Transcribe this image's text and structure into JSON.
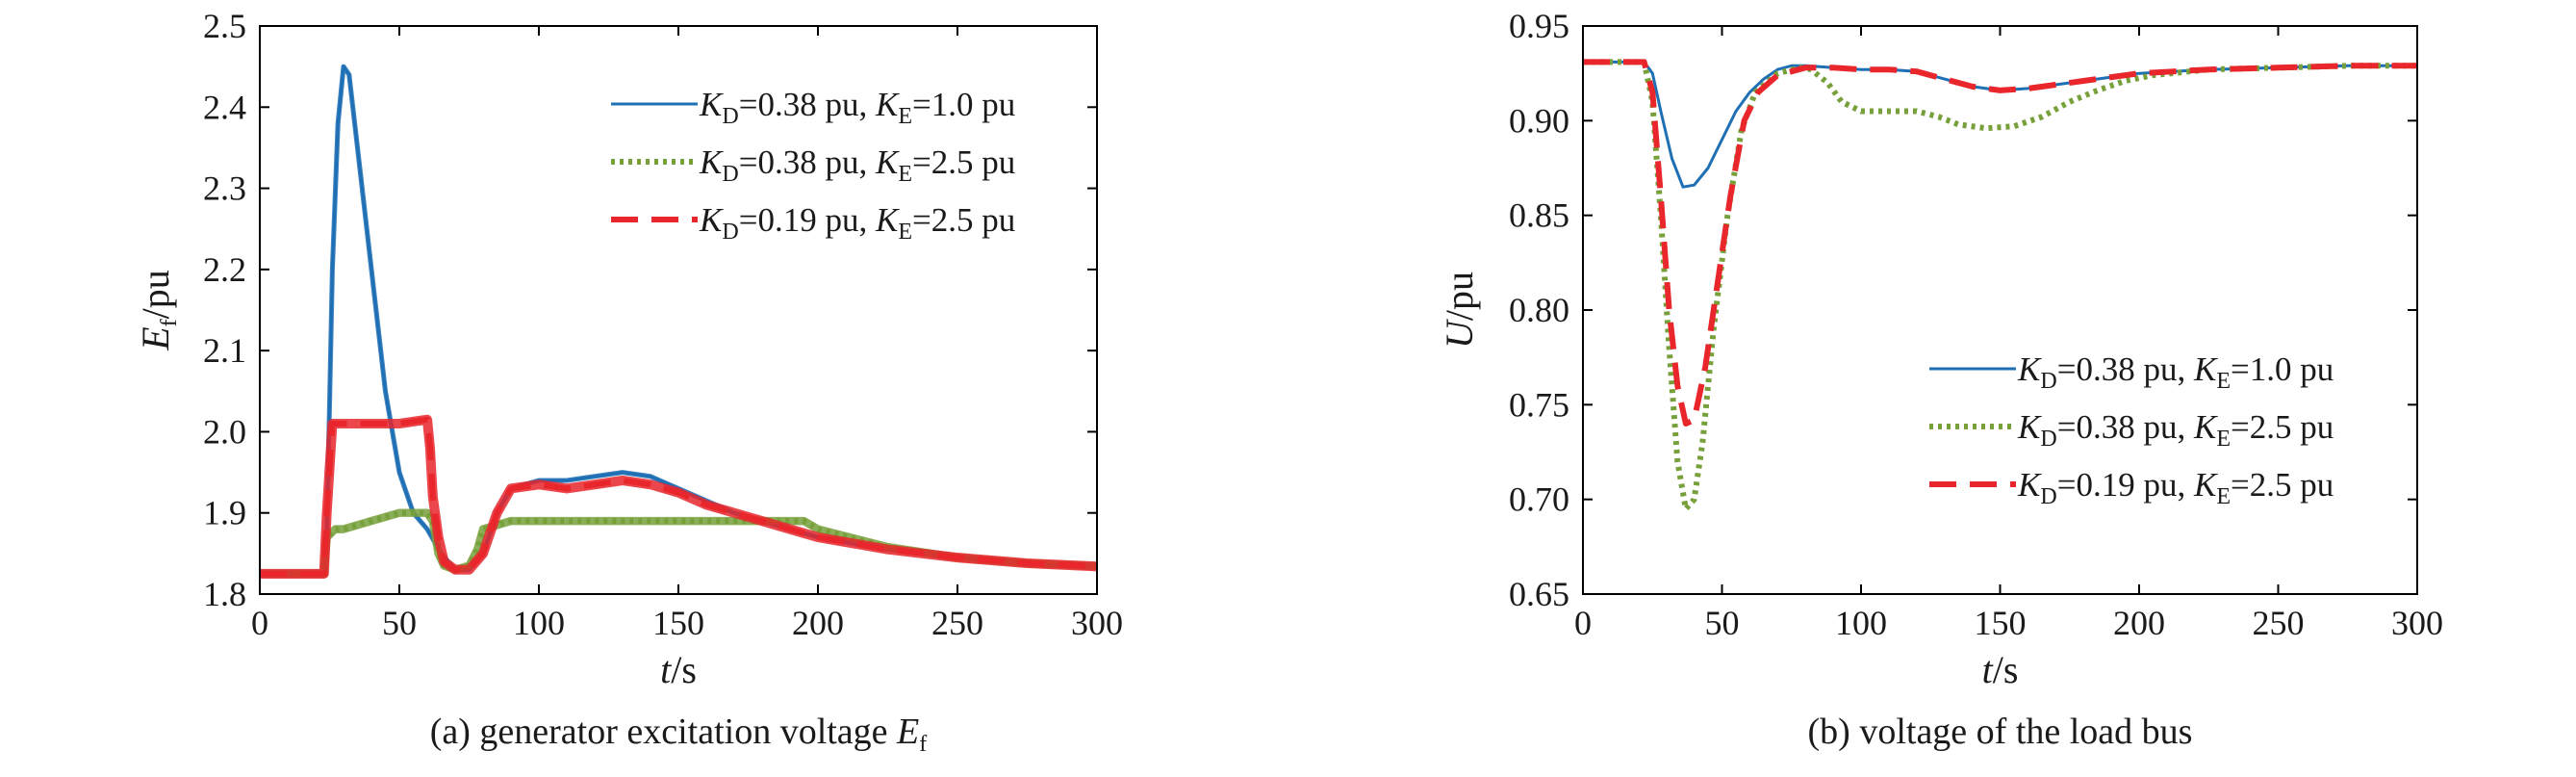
{
  "colors": {
    "series_1": "#1f6fb5",
    "series_2": "#77a03b",
    "series_3": "#e8262b",
    "axis": "#000000"
  },
  "chart_data": [
    {
      "type": "line",
      "caption": {
        "prefix": "(a) generator excitation voltage ",
        "var": "E",
        "sub": "f"
      },
      "xlabel": {
        "var": "t",
        "unit": "/s"
      },
      "ylabel": {
        "var": "E",
        "sub": "f",
        "unit": "/pu"
      },
      "xlim": [
        0,
        300
      ],
      "ylim": [
        1.8,
        2.5
      ],
      "xticks": [
        0,
        50,
        100,
        150,
        200,
        250,
        300
      ],
      "yticks": [
        1.8,
        1.9,
        2.0,
        2.1,
        2.2,
        2.3,
        2.4,
        2.5
      ],
      "ytick_labels": [
        "1.8",
        "1.9",
        "2.0",
        "2.1",
        "2.2",
        "2.3",
        "2.4",
        "2.5"
      ],
      "xtick_labels": [
        "0",
        "50",
        "100",
        "150",
        "200",
        "250",
        "300"
      ],
      "grid": false,
      "legend_position": "top-right",
      "series": [
        {
          "name": "KD=0.38 pu, KE=1.0 pu",
          "kd": "0.38",
          "ke": "1.0",
          "style": "solid",
          "color": "#1f6fb5",
          "band": 0.006,
          "points": [
            [
              0,
              1.825
            ],
            [
              23,
              1.825
            ],
            [
              24,
              1.87
            ],
            [
              26,
              2.2
            ],
            [
              28,
              2.38
            ],
            [
              30,
              2.45
            ],
            [
              32,
              2.44
            ],
            [
              35,
              2.35
            ],
            [
              40,
              2.2
            ],
            [
              45,
              2.05
            ],
            [
              50,
              1.95
            ],
            [
              55,
              1.9
            ],
            [
              60,
              1.88
            ],
            [
              65,
              1.85
            ],
            [
              70,
              1.83
            ],
            [
              75,
              1.83
            ],
            [
              80,
              1.85
            ],
            [
              85,
              1.9
            ],
            [
              90,
              1.93
            ],
            [
              100,
              1.94
            ],
            [
              110,
              1.94
            ],
            [
              120,
              1.945
            ],
            [
              130,
              1.95
            ],
            [
              140,
              1.945
            ],
            [
              150,
              1.93
            ],
            [
              160,
              1.915
            ],
            [
              170,
              1.9
            ],
            [
              180,
              1.89
            ],
            [
              190,
              1.88
            ],
            [
              200,
              1.87
            ],
            [
              225,
              1.855
            ],
            [
              250,
              1.845
            ],
            [
              275,
              1.838
            ],
            [
              300,
              1.834
            ]
          ]
        },
        {
          "name": "KD=0.38 pu, KE=2.5 pu",
          "kd": "0.38",
          "ke": "2.5",
          "style": "dotted",
          "color": "#77a03b",
          "band": 0.01,
          "points": [
            [
              0,
              1.825
            ],
            [
              23,
              1.825
            ],
            [
              24,
              1.87
            ],
            [
              27,
              1.88
            ],
            [
              30,
              1.88
            ],
            [
              40,
              1.89
            ],
            [
              50,
              1.9
            ],
            [
              60,
              1.9
            ],
            [
              62,
              1.89
            ],
            [
              64,
              1.85
            ],
            [
              66,
              1.835
            ],
            [
              70,
              1.83
            ],
            [
              75,
              1.835
            ],
            [
              78,
              1.855
            ],
            [
              80,
              1.88
            ],
            [
              90,
              1.89
            ],
            [
              120,
              1.89
            ],
            [
              150,
              1.89
            ],
            [
              180,
              1.89
            ],
            [
              195,
              1.89
            ],
            [
              200,
              1.88
            ],
            [
              225,
              1.858
            ],
            [
              250,
              1.845
            ],
            [
              275,
              1.838
            ],
            [
              300,
              1.834
            ]
          ]
        },
        {
          "name": "KD=0.19 pu, KE=2.5 pu",
          "kd": "0.19",
          "ke": "2.5",
          "style": "dashed",
          "color": "#e8262b",
          "band": 0.012,
          "points": [
            [
              0,
              1.825
            ],
            [
              23,
              1.825
            ],
            [
              24,
              1.9
            ],
            [
              26,
              2.01
            ],
            [
              30,
              2.01
            ],
            [
              40,
              2.01
            ],
            [
              50,
              2.01
            ],
            [
              60,
              2.015
            ],
            [
              61,
              1.98
            ],
            [
              62,
              1.92
            ],
            [
              64,
              1.87
            ],
            [
              66,
              1.84
            ],
            [
              70,
              1.83
            ],
            [
              75,
              1.83
            ],
            [
              80,
              1.85
            ],
            [
              85,
              1.9
            ],
            [
              90,
              1.93
            ],
            [
              100,
              1.935
            ],
            [
              110,
              1.93
            ],
            [
              120,
              1.935
            ],
            [
              130,
              1.94
            ],
            [
              140,
              1.935
            ],
            [
              150,
              1.925
            ],
            [
              160,
              1.91
            ],
            [
              170,
              1.9
            ],
            [
              180,
              1.89
            ],
            [
              190,
              1.88
            ],
            [
              200,
              1.87
            ],
            [
              225,
              1.855
            ],
            [
              250,
              1.845
            ],
            [
              275,
              1.838
            ],
            [
              300,
              1.834
            ]
          ]
        }
      ]
    },
    {
      "type": "line",
      "caption": {
        "prefix": "(b) voltage of the load bus",
        "var": "",
        "sub": ""
      },
      "xlabel": {
        "var": "t",
        "unit": "/s"
      },
      "ylabel": {
        "var": "U",
        "sub": "",
        "unit": "/pu"
      },
      "xlim": [
        0,
        300
      ],
      "ylim": [
        0.65,
        0.95
      ],
      "xticks": [
        0,
        50,
        100,
        150,
        200,
        250,
        300
      ],
      "yticks": [
        0.65,
        0.7,
        0.75,
        0.8,
        0.85,
        0.9,
        0.95
      ],
      "ytick_labels": [
        "0.65",
        "0.70",
        "0.75",
        "0.80",
        "0.85",
        "0.90",
        "0.95"
      ],
      "xtick_labels": [
        "0",
        "50",
        "100",
        "150",
        "200",
        "250",
        "300"
      ],
      "grid": false,
      "legend_position": "bottom-right",
      "series": [
        {
          "name": "KD=0.38 pu, KE=1.0 pu",
          "kd": "0.38",
          "ke": "1.0",
          "style": "solid",
          "color": "#1f6fb5",
          "band": 0,
          "points": [
            [
              0,
              0.931
            ],
            [
              22,
              0.931
            ],
            [
              25,
              0.925
            ],
            [
              28,
              0.905
            ],
            [
              32,
              0.88
            ],
            [
              36,
              0.865
            ],
            [
              40,
              0.866
            ],
            [
              45,
              0.875
            ],
            [
              50,
              0.89
            ],
            [
              55,
              0.905
            ],
            [
              60,
              0.915
            ],
            [
              65,
              0.922
            ],
            [
              70,
              0.927
            ],
            [
              75,
              0.929
            ],
            [
              80,
              0.929
            ],
            [
              90,
              0.928
            ],
            [
              100,
              0.927
            ],
            [
              110,
              0.927
            ],
            [
              120,
              0.926
            ],
            [
              130,
              0.922
            ],
            [
              140,
              0.918
            ],
            [
              150,
              0.916
            ],
            [
              160,
              0.917
            ],
            [
              170,
              0.919
            ],
            [
              180,
              0.921
            ],
            [
              190,
              0.923
            ],
            [
              200,
              0.925
            ],
            [
              225,
              0.927
            ],
            [
              250,
              0.928
            ],
            [
              275,
              0.929
            ],
            [
              300,
              0.929
            ]
          ]
        },
        {
          "name": "KD=0.38 pu, KE=2.5 pu",
          "kd": "0.38",
          "ke": "2.5",
          "style": "dotted",
          "color": "#77a03b",
          "band": 0,
          "points": [
            [
              0,
              0.931
            ],
            [
              22,
              0.931
            ],
            [
              25,
              0.91
            ],
            [
              28,
              0.85
            ],
            [
              31,
              0.78
            ],
            [
              34,
              0.72
            ],
            [
              37,
              0.695
            ],
            [
              40,
              0.7
            ],
            [
              43,
              0.73
            ],
            [
              47,
              0.79
            ],
            [
              52,
              0.85
            ],
            [
              57,
              0.895
            ],
            [
              62,
              0.915
            ],
            [
              70,
              0.925
            ],
            [
              78,
              0.928
            ],
            [
              82,
              0.927
            ],
            [
              88,
              0.92
            ],
            [
              93,
              0.91
            ],
            [
              100,
              0.905
            ],
            [
              110,
              0.905
            ],
            [
              120,
              0.905
            ],
            [
              128,
              0.902
            ],
            [
              135,
              0.898
            ],
            [
              145,
              0.896
            ],
            [
              155,
              0.897
            ],
            [
              165,
              0.902
            ],
            [
              175,
              0.91
            ],
            [
              185,
              0.916
            ],
            [
              195,
              0.921
            ],
            [
              205,
              0.924
            ],
            [
              225,
              0.927
            ],
            [
              250,
              0.928
            ],
            [
              275,
              0.929
            ],
            [
              300,
              0.929
            ]
          ]
        },
        {
          "name": "KD=0.19 pu, KE=2.5 pu",
          "kd": "0.19",
          "ke": "2.5",
          "style": "dashed",
          "color": "#e8262b",
          "band": 0,
          "points": [
            [
              0,
              0.931
            ],
            [
              22,
              0.931
            ],
            [
              25,
              0.915
            ],
            [
              28,
              0.86
            ],
            [
              31,
              0.8
            ],
            [
              34,
              0.76
            ],
            [
              37,
              0.74
            ],
            [
              40,
              0.742
            ],
            [
              44,
              0.77
            ],
            [
              48,
              0.81
            ],
            [
              53,
              0.86
            ],
            [
              58,
              0.9
            ],
            [
              63,
              0.915
            ],
            [
              70,
              0.924
            ],
            [
              80,
              0.928
            ],
            [
              90,
              0.928
            ],
            [
              100,
              0.927
            ],
            [
              110,
              0.927
            ],
            [
              120,
              0.926
            ],
            [
              130,
              0.922
            ],
            [
              140,
              0.918
            ],
            [
              150,
              0.916
            ],
            [
              160,
              0.917
            ],
            [
              170,
              0.919
            ],
            [
              180,
              0.921
            ],
            [
              190,
              0.923
            ],
            [
              200,
              0.925
            ],
            [
              225,
              0.927
            ],
            [
              250,
              0.928
            ],
            [
              275,
              0.929
            ],
            [
              300,
              0.929
            ]
          ]
        }
      ]
    }
  ]
}
